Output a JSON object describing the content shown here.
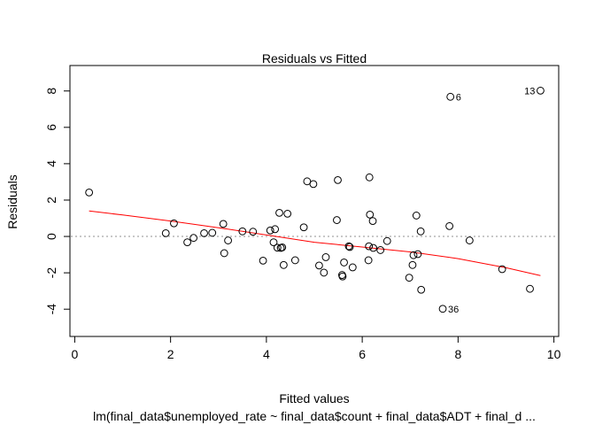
{
  "chart_data": {
    "type": "scatter",
    "title": "Residuals vs Fitted",
    "xlabel": "Fitted values",
    "ylabel": "Residuals",
    "subtitle": "lm(final_data$unemployed_rate ~ final_data$count + final_data$ADT + final_d ...",
    "xlim": [
      -0.1,
      10.1
    ],
    "ylim": [
      -5.5,
      9.4
    ],
    "x_ticks": [
      0,
      2,
      4,
      6,
      8,
      10
    ],
    "y_ticks": [
      -4,
      -2,
      0,
      2,
      4,
      6,
      8
    ],
    "grid": false,
    "zero_line": {
      "y": 0,
      "style": "dotted",
      "color": "#c8c8c8"
    },
    "colors": {
      "points": "#000000",
      "smoother": "#ff0000"
    },
    "points": [
      {
        "x": 0.3,
        "y": 2.42
      },
      {
        "x": 1.9,
        "y": 0.18
      },
      {
        "x": 2.07,
        "y": 0.72
      },
      {
        "x": 2.35,
        "y": -0.32
      },
      {
        "x": 2.48,
        "y": -0.08
      },
      {
        "x": 2.7,
        "y": 0.18
      },
      {
        "x": 2.87,
        "y": 0.2
      },
      {
        "x": 3.1,
        "y": 0.69
      },
      {
        "x": 3.12,
        "y": -0.92
      },
      {
        "x": 3.2,
        "y": -0.22
      },
      {
        "x": 3.5,
        "y": 0.28
      },
      {
        "x": 3.72,
        "y": 0.26
      },
      {
        "x": 3.93,
        "y": -1.33
      },
      {
        "x": 4.08,
        "y": 0.33
      },
      {
        "x": 4.15,
        "y": -0.32
      },
      {
        "x": 4.18,
        "y": 0.4
      },
      {
        "x": 4.23,
        "y": -0.62
      },
      {
        "x": 4.27,
        "y": 1.3
      },
      {
        "x": 4.3,
        "y": -0.63
      },
      {
        "x": 4.33,
        "y": -0.6
      },
      {
        "x": 4.36,
        "y": -1.57
      },
      {
        "x": 4.44,
        "y": 1.25
      },
      {
        "x": 4.6,
        "y": -1.31
      },
      {
        "x": 4.78,
        "y": 0.5
      },
      {
        "x": 4.85,
        "y": 3.03
      },
      {
        "x": 4.98,
        "y": 2.88
      },
      {
        "x": 5.1,
        "y": -1.6
      },
      {
        "x": 5.2,
        "y": -1.99
      },
      {
        "x": 5.24,
        "y": -1.14
      },
      {
        "x": 5.47,
        "y": 0.9
      },
      {
        "x": 5.49,
        "y": 3.1
      },
      {
        "x": 5.58,
        "y": -2.12
      },
      {
        "x": 5.59,
        "y": -2.2
      },
      {
        "x": 5.62,
        "y": -1.43
      },
      {
        "x": 5.72,
        "y": -0.54
      },
      {
        "x": 5.74,
        "y": -0.58
      },
      {
        "x": 5.8,
        "y": -1.7
      },
      {
        "x": 6.13,
        "y": -1.31
      },
      {
        "x": 6.14,
        "y": -0.54
      },
      {
        "x": 6.15,
        "y": 3.25
      },
      {
        "x": 6.16,
        "y": 1.2
      },
      {
        "x": 6.22,
        "y": 0.85
      },
      {
        "x": 6.23,
        "y": -0.63
      },
      {
        "x": 6.38,
        "y": -0.75
      },
      {
        "x": 6.52,
        "y": -0.25
      },
      {
        "x": 6.98,
        "y": -2.27
      },
      {
        "x": 7.05,
        "y": -1.57
      },
      {
        "x": 7.07,
        "y": -1.03
      },
      {
        "x": 7.13,
        "y": 1.15
      },
      {
        "x": 7.16,
        "y": -0.97
      },
      {
        "x": 7.22,
        "y": 0.28
      },
      {
        "x": 7.23,
        "y": -2.93
      },
      {
        "x": 7.68,
        "y": -3.98
      },
      {
        "x": 7.82,
        "y": 0.57
      },
      {
        "x": 7.84,
        "y": 7.68
      },
      {
        "x": 8.24,
        "y": -0.22
      },
      {
        "x": 8.92,
        "y": -1.8
      },
      {
        "x": 9.5,
        "y": -2.88
      },
      {
        "x": 9.72,
        "y": 8.02
      }
    ],
    "annotations": [
      {
        "label": "6",
        "x": 7.84,
        "y": 7.68,
        "side": "right"
      },
      {
        "label": "13",
        "x": 9.72,
        "y": 8.02,
        "side": "left"
      },
      {
        "label": "36",
        "x": 7.68,
        "y": -3.98,
        "side": "right"
      }
    ],
    "smoother": {
      "x": [
        0.3,
        1.0,
        2.0,
        3.0,
        4.0,
        5.0,
        6.0,
        7.0,
        8.0,
        9.0,
        9.72
      ],
      "y": [
        1.4,
        1.18,
        0.85,
        0.48,
        0.08,
        -0.32,
        -0.58,
        -0.85,
        -1.22,
        -1.72,
        -2.15
      ]
    }
  }
}
